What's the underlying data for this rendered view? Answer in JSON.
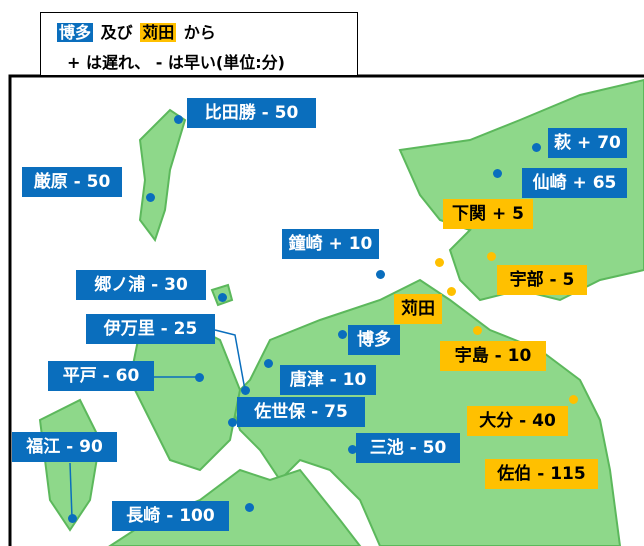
{
  "legend": {
    "origin_a": "博多",
    "and": "及び",
    "origin_b": "苅田",
    "from": "から",
    "note": "+ は遅れ、 - は早い(単位:分)"
  },
  "places": [
    "比田勝 - 50",
    "厳原 - 50",
    "萩 + 70",
    "仙崎 + 65",
    "下関 + 5",
    "鐘崎 + 10",
    "宇部 - 5",
    "郷ノ浦 - 30",
    "苅田",
    "伊万里 - 25",
    "博多",
    "宇島 - 10",
    "平戸 - 60",
    "唐津 - 10",
    "佐世保 - 75",
    "大分 - 40",
    "福江 - 90",
    "三池 - 50",
    "佐伯 - 115",
    "長崎 - 100"
  ]
}
